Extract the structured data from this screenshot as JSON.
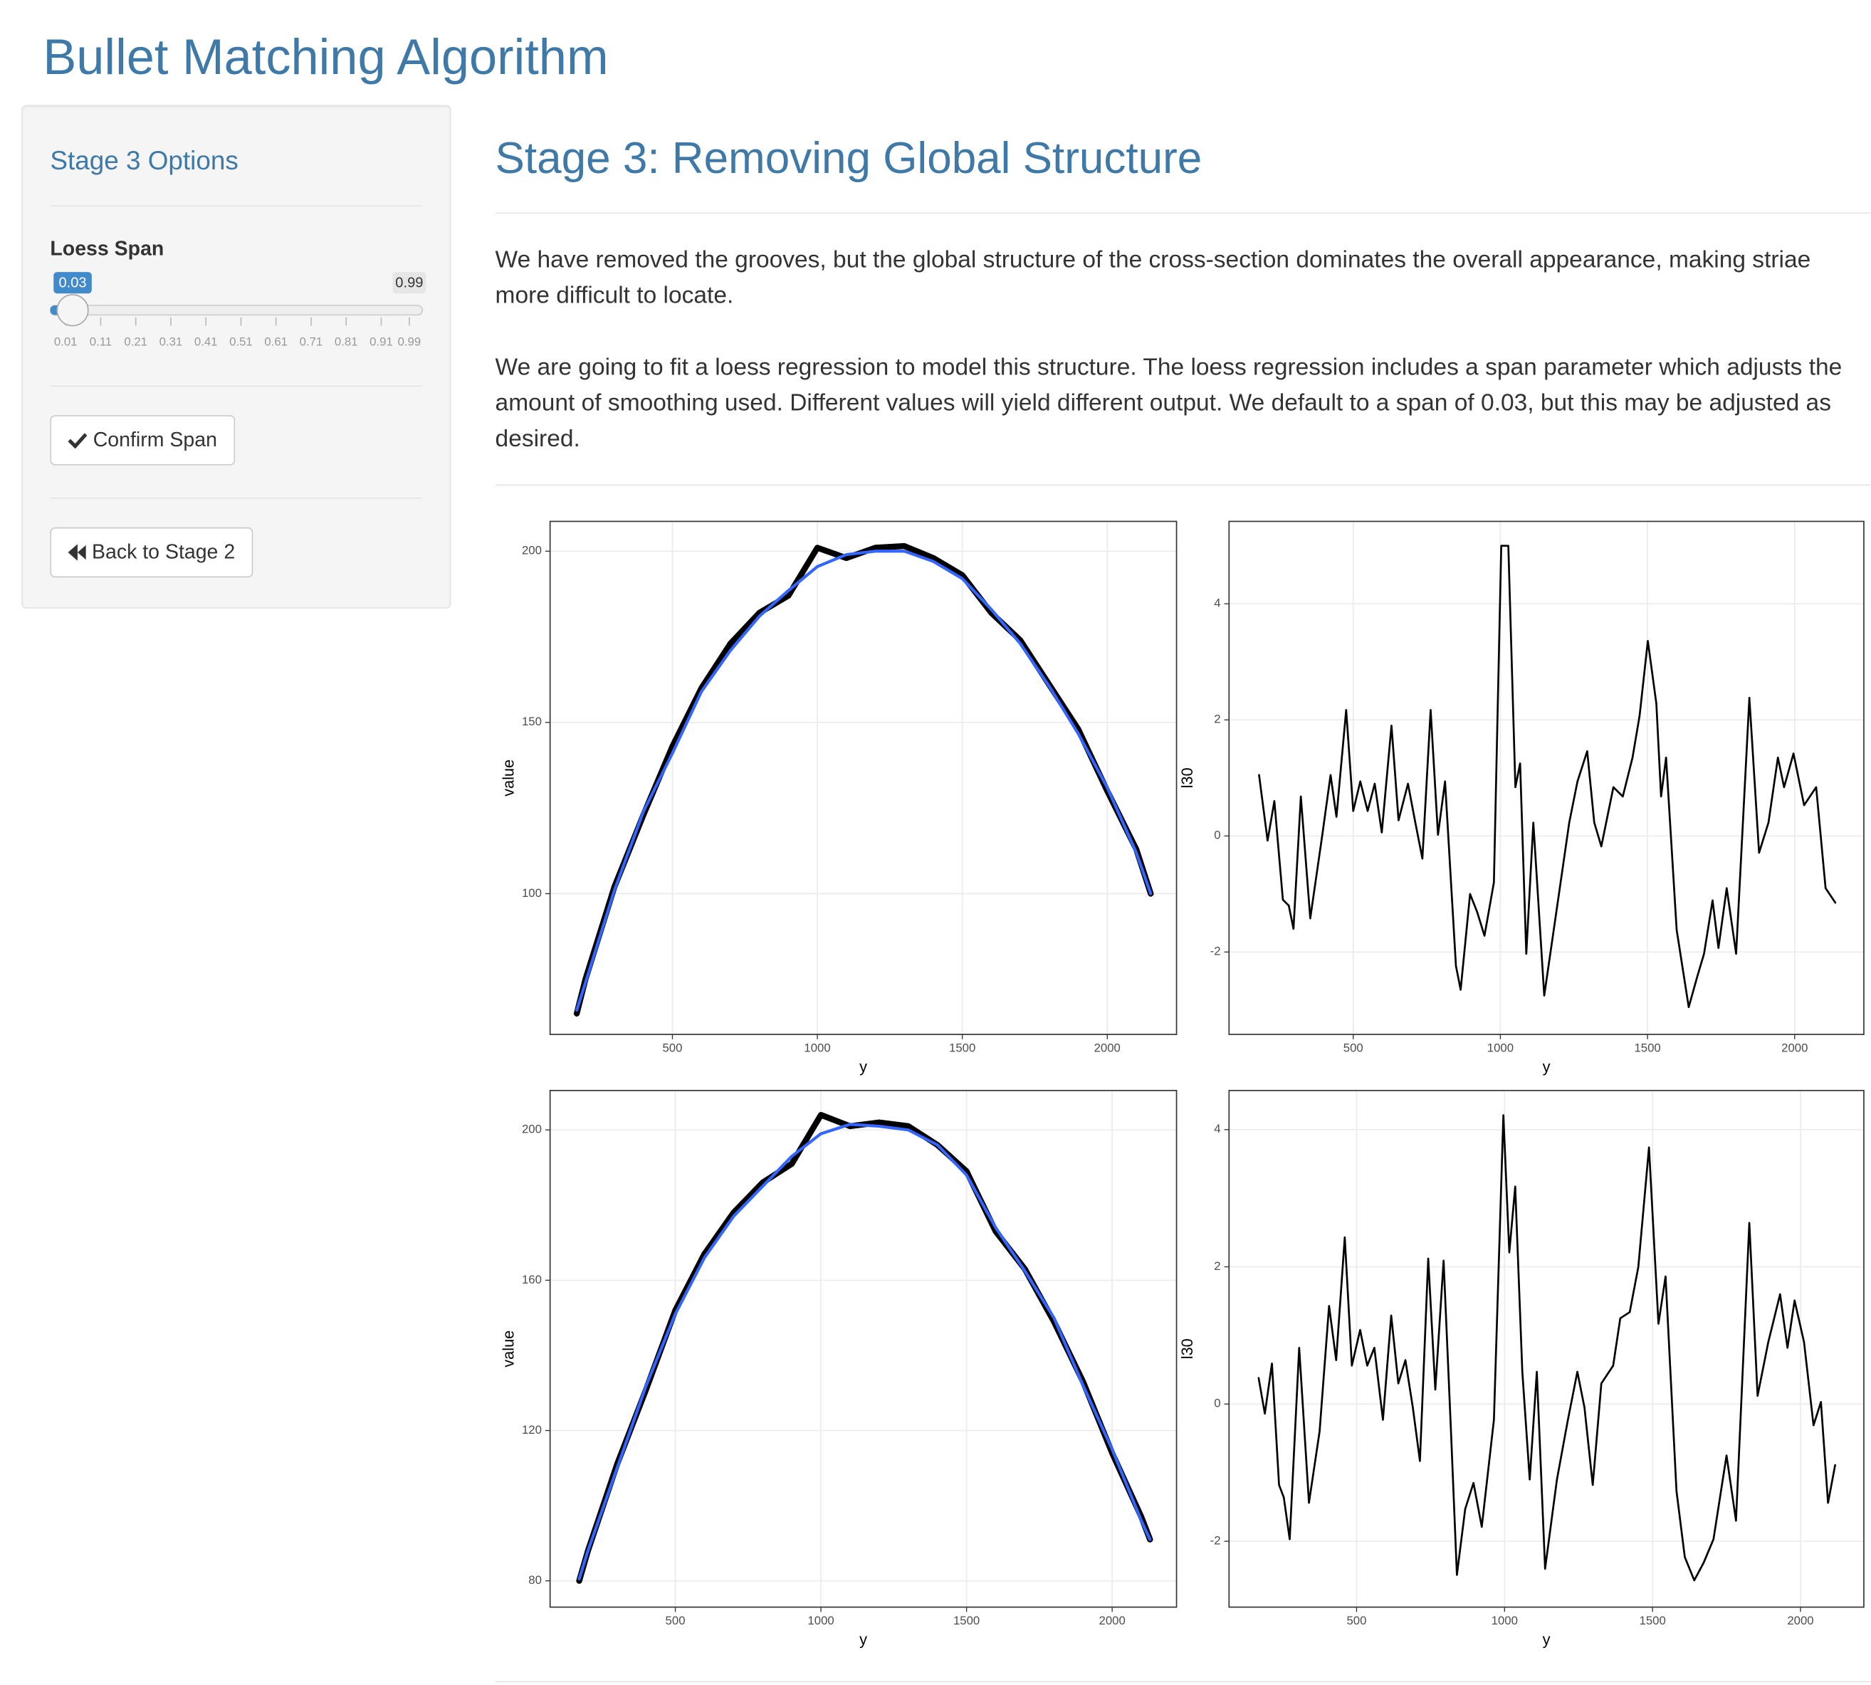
{
  "header": {
    "title": "Bullet Matching Algorithm"
  },
  "sidebar": {
    "title": "Stage 3 Options",
    "slider": {
      "label": "Loess Span",
      "value": 0.03,
      "min": 0.01,
      "max": 0.99,
      "ticks": [
        0.01,
        0.11,
        0.21,
        0.31,
        0.41,
        0.51,
        0.61,
        0.71,
        0.81,
        0.91,
        0.99
      ]
    },
    "buttons": [
      "Confirm Span",
      "Back to Stage 2"
    ]
  },
  "main": {
    "title": "Stage 3: Removing Global Structure",
    "paragraphs": [
      "We have removed the grooves, but the global structure of the cross-section dominates the overall appearance, making striae more difficult to locate.",
      "We are going to fit a loess regression to model this structure. The loess regression includes a span parameter which adjusts the amount of smoothing used. Different values will yield different output. We default to a span of 0.03, but this may be adjusted as desired."
    ]
  },
  "chart_data": [
    {
      "type": "line",
      "x_label": "y",
      "y_label": "value",
      "x": [
        170,
        200,
        300,
        400,
        500,
        600,
        700,
        800,
        900,
        1000,
        1100,
        1200,
        1300,
        1400,
        1500,
        1600,
        1700,
        1800,
        1900,
        2000,
        2100,
        2150
      ],
      "series": [
        {
          "color": "#000000",
          "values": [
            65,
            75,
            102,
            123,
            143,
            160,
            173,
            182,
            187,
            201,
            198,
            201,
            201.5,
            198,
            193,
            182,
            174,
            161,
            148,
            130,
            113,
            100
          ]
        },
        {
          "color": "#3366ff",
          "values": [
            66,
            74,
            101,
            124,
            141,
            159,
            171,
            181,
            188.5,
            195.5,
            199,
            200,
            200,
            197,
            192,
            183,
            173,
            160.5,
            146.7,
            131,
            112,
            100
          ]
        }
      ],
      "xlim": [
        78,
        2239
      ],
      "ylim": [
        58.9,
        208.7
      ],
      "xticks": [
        500,
        1000,
        1500,
        2000
      ],
      "yticks": [
        100,
        150,
        200
      ],
      "grid": true
    },
    {
      "type": "line",
      "x_label": "y",
      "y_label": "l30",
      "x": [
        180,
        209,
        232,
        261,
        281,
        297,
        322,
        354,
        395,
        423,
        443,
        476,
        500,
        524,
        549,
        573,
        597,
        630,
        654,
        686,
        711,
        735,
        763,
        788,
        812,
        849,
        865,
        897,
        921,
        946,
        978,
        1003,
        1027,
        1051,
        1067,
        1088,
        1112,
        1149,
        1193,
        1234,
        1262,
        1295,
        1319,
        1343,
        1384,
        1416,
        1449,
        1473,
        1501,
        1530,
        1546,
        1563,
        1599,
        1640,
        1668,
        1692,
        1721,
        1741,
        1769,
        1801,
        1846,
        1879,
        1911,
        1943,
        1964,
        1996,
        2032,
        2073,
        2105,
        2138
      ],
      "series": [
        {
          "color": "#000000",
          "values": [
            1.05,
            -0.08,
            0.6,
            -1.1,
            -1.2,
            -1.6,
            0.68,
            -1.42,
            0.02,
            1.05,
            0.33,
            2.17,
            0.43,
            0.94,
            0.43,
            0.9,
            0.06,
            1.9,
            0.27,
            0.9,
            0.23,
            -0.39,
            2.17,
            0.02,
            0.94,
            -2.24,
            -2.65,
            -1.0,
            -1.31,
            -1.72,
            -0.8,
            5.0,
            5.0,
            0.84,
            1.25,
            -2.03,
            0.23,
            -2.75,
            -1.21,
            0.23,
            0.94,
            1.46,
            0.23,
            -0.18,
            0.84,
            0.68,
            1.35,
            2.07,
            3.36,
            2.28,
            0.68,
            1.35,
            -1.62,
            -2.95,
            -2.44,
            -2.03,
            -1.11,
            -1.93,
            -0.9,
            -2.03,
            2.38,
            -0.29,
            0.23,
            1.35,
            0.84,
            1.42,
            0.53,
            0.84,
            -0.9,
            -1.15
          ]
        }
      ],
      "xlim": [
        78,
        2235
      ],
      "ylim": [
        -3.42,
        5.42
      ],
      "xticks": [
        500,
        1000,
        1500,
        2000
      ],
      "yticks": [
        -2,
        0,
        2,
        4
      ],
      "grid": true
    },
    {
      "type": "line",
      "x_label": "y",
      "y_label": "value",
      "x": [
        170,
        200,
        300,
        400,
        500,
        600,
        700,
        800,
        900,
        1000,
        1100,
        1200,
        1300,
        1400,
        1500,
        1600,
        1700,
        1800,
        1900,
        2000,
        2100,
        2130
      ],
      "series": [
        {
          "color": "#000000",
          "values": [
            80,
            88,
            111,
            131,
            152,
            167,
            178,
            186,
            191,
            204,
            201,
            202,
            201,
            196,
            189,
            173,
            163,
            149,
            133,
            114,
            97,
            91
          ]
        },
        {
          "color": "#3366ff",
          "values": [
            80.5,
            88,
            110,
            132,
            151,
            166,
            177,
            185,
            193,
            199,
            201.5,
            201,
            200,
            196,
            188,
            174,
            162.5,
            150,
            132,
            115,
            96,
            91
          ]
        }
      ],
      "xlim": [
        70,
        2221
      ],
      "ylim": [
        73.0,
        210.5
      ],
      "xticks": [
        500,
        1000,
        1500,
        2000
      ],
      "yticks": [
        80,
        120,
        160,
        200
      ],
      "grid": true
    },
    {
      "type": "line",
      "x_label": "y",
      "y_label": "l30",
      "x": [
        169,
        190,
        214,
        238,
        254,
        274,
        306,
        339,
        375,
        407,
        431,
        460,
        484,
        512,
        536,
        560,
        589,
        617,
        641,
        665,
        690,
        714,
        742,
        766,
        794,
        819,
        839,
        867,
        895,
        923,
        964,
        996,
        1016,
        1036,
        1060,
        1085,
        1109,
        1137,
        1177,
        1214,
        1246,
        1270,
        1298,
        1327,
        1367,
        1391,
        1423,
        1452,
        1488,
        1520,
        1544,
        1581,
        1609,
        1641,
        1673,
        1706,
        1750,
        1782,
        1827,
        1855,
        1891,
        1931,
        1956,
        1980,
        2012,
        2044,
        2069,
        2093,
        2117
      ],
      "series": [
        {
          "color": "#000000",
          "values": [
            0.38,
            -0.14,
            0.59,
            -1.18,
            -1.36,
            -1.97,
            0.82,
            -1.44,
            -0.4,
            1.43,
            0.64,
            2.43,
            0.56,
            1.08,
            0.56,
            0.82,
            -0.23,
            1.29,
            0.3,
            0.64,
            -0.05,
            -0.83,
            2.12,
            0.21,
            2.09,
            -0.4,
            -2.49,
            -1.53,
            -1.15,
            -1.79,
            -0.23,
            4.21,
            2.21,
            3.17,
            0.47,
            -1.1,
            0.47,
            -2.4,
            -1.1,
            -0.23,
            0.47,
            -0.05,
            -1.18,
            0.3,
            0.56,
            1.25,
            1.34,
            2.0,
            3.74,
            1.17,
            1.86,
            -1.27,
            -2.23,
            -2.57,
            -2.31,
            -1.97,
            -0.75,
            -1.7,
            2.64,
            0.12,
            0.9,
            1.6,
            0.82,
            1.51,
            0.9,
            -0.31,
            0.03,
            -1.44,
            -0.89
          ]
        }
      ],
      "xlim": [
        69,
        2214
      ],
      "ylim": [
        -2.96,
        4.57
      ],
      "xticks": [
        500,
        1000,
        1500,
        2000
      ],
      "yticks": [
        -2,
        0,
        2,
        4
      ],
      "grid": true
    }
  ]
}
